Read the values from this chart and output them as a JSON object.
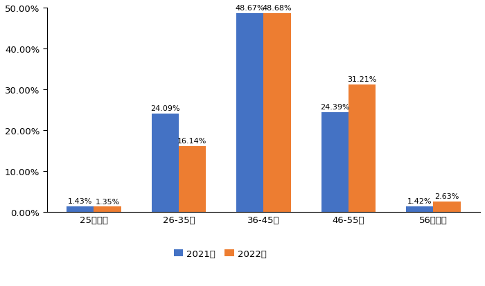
{
  "categories": [
    "25岁以下",
    "26-35岁",
    "36-45岁",
    "46-55岁",
    "56岁以上"
  ],
  "values_2021": [
    1.43,
    24.09,
    48.67,
    24.39,
    1.42
  ],
  "values_2022": [
    1.35,
    16.14,
    48.68,
    31.21,
    2.63
  ],
  "labels_2021": [
    "1.43%",
    "24.09%",
    "48.67%",
    "24.39%",
    "1.42%"
  ],
  "labels_2022": [
    "1.35%",
    "16.14%",
    "48.68%",
    "31.21%",
    "2.63%"
  ],
  "color_2021": "#4472C4",
  "color_2022": "#ED7D31",
  "legend_2021": "2021年",
  "legend_2022": "2022年",
  "ylim": [
    0,
    50
  ],
  "yticks": [
    0,
    10,
    20,
    30,
    40,
    50
  ],
  "ytick_labels": [
    "0.00%",
    "10.00%",
    "20.00%",
    "30.00%",
    "40.00%",
    "50.00%"
  ],
  "background_color": "#ffffff",
  "bar_width": 0.32,
  "label_fontsize": 8.0,
  "tick_fontsize": 9.5,
  "legend_fontsize": 9.5
}
